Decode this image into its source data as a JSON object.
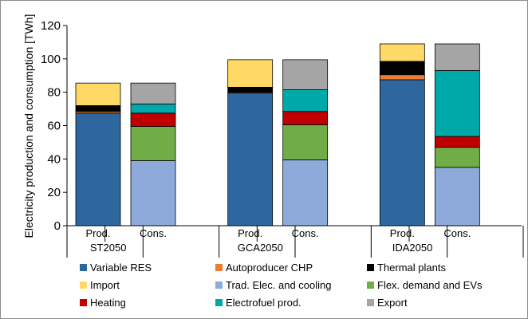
{
  "chart_data": {
    "type": "bar",
    "stacked": true,
    "ylabel": "Electricity production and consumption [TWh]",
    "xlabel": "",
    "title": "",
    "ylim": [
      0,
      120
    ],
    "yticks": [
      0,
      20,
      40,
      60,
      80,
      100,
      120
    ],
    "grid": false,
    "legend_position": "bottom",
    "groups": [
      {
        "name": "ST2050",
        "bars": [
          {
            "label": "Prod.",
            "segments": [
              {
                "series": "Variable RES",
                "value": 67.5
              },
              {
                "series": "Autoproducer CHP",
                "value": 1
              },
              {
                "series": "Thermal plants",
                "value": 3.5
              },
              {
                "series": "Import",
                "value": 13.5
              }
            ]
          },
          {
            "label": "Cons.",
            "segments": [
              {
                "series": "Trad. Elec. and cooling",
                "value": 39
              },
              {
                "series": "Flex. demand and EVs",
                "value": 20.5
              },
              {
                "series": "Heating",
                "value": 8
              },
              {
                "series": "Electrofuel prod.",
                "value": 5.5
              },
              {
                "series": "Export",
                "value": 12.5
              }
            ]
          }
        ]
      },
      {
        "name": "GCA2050",
        "bars": [
          {
            "label": "Prod.",
            "segments": [
              {
                "series": "Variable RES",
                "value": 79.5
              },
              {
                "series": "Autoproducer CHP",
                "value": 0.5
              },
              {
                "series": "Thermal plants",
                "value": 3
              },
              {
                "series": "Import",
                "value": 16.5
              }
            ]
          },
          {
            "label": "Cons.",
            "segments": [
              {
                "series": "Trad. Elec. and cooling",
                "value": 39.5
              },
              {
                "series": "Flex. demand and EVs",
                "value": 21
              },
              {
                "series": "Heating",
                "value": 8
              },
              {
                "series": "Electrofuel prod.",
                "value": 13
              },
              {
                "series": "Export",
                "value": 18
              }
            ]
          }
        ]
      },
      {
        "name": "IDA2050",
        "bars": [
          {
            "label": "Prod.",
            "segments": [
              {
                "series": "Variable RES",
                "value": 87.5
              },
              {
                "series": "Autoproducer CHP",
                "value": 3
              },
              {
                "series": "Thermal plants",
                "value": 8
              },
              {
                "series": "Import",
                "value": 10.5
              }
            ]
          },
          {
            "label": "Cons.",
            "segments": [
              {
                "series": "Trad. Elec. and cooling",
                "value": 35
              },
              {
                "series": "Flex. demand and EVs",
                "value": 12
              },
              {
                "series": "Heating",
                "value": 6.5
              },
              {
                "series": "Electrofuel prod.",
                "value": 39.5
              },
              {
                "series": "Export",
                "value": 16
              }
            ]
          }
        ]
      }
    ],
    "legend": [
      {
        "name": "Variable RES",
        "color": "#2e67a0"
      },
      {
        "name": "Autoproducer CHP",
        "color": "#ed7d31"
      },
      {
        "name": "Thermal plants",
        "color": "#000000"
      },
      {
        "name": "Import",
        "color": "#ffd966"
      },
      {
        "name": "Trad. Elec. and cooling",
        "color": "#8eaadb"
      },
      {
        "name": "Flex. demand and EVs",
        "color": "#70ad47"
      },
      {
        "name": "Heating",
        "color": "#c00000"
      },
      {
        "name": "Electrofuel prod.",
        "color": "#00a9a9"
      },
      {
        "name": "Export",
        "color": "#a5a5a5"
      }
    ]
  }
}
